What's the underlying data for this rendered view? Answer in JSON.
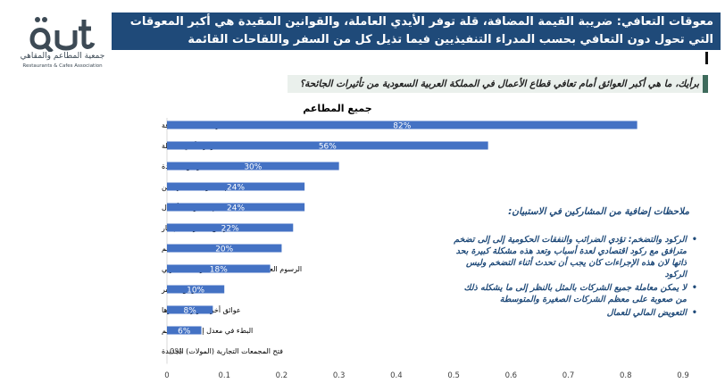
{
  "logo": {
    "arabic": "جمعية المطاعم والمقاهي",
    "english": "Restaurants & Cafes Association",
    "color": "#3d4a55"
  },
  "header": {
    "label": "معوقات التعافي:",
    "text": "ضريبة القيمة المضافة، قلة توفر الأيدي العاملة، والقوانين المقيدة هي أكبر المعوقات التي تحول دون التعافي بحسب المدراء التنفيذيين فيما تذيل كل من السفر واللقاحات القائمة",
    "background": "#1f4a79"
  },
  "question": "برأيك، ما هي أكبر العوائق أمام تعافي قطاع الأعمال في المملكة العربية السعودية من تأثيرات الجائحة؟",
  "notes": {
    "title": "ملاحظات إضافية من المشاركين في الاستبيان:",
    "items": [
      "الركود والتضخم: تؤدي الضرائب والنفقات الحكومية إلى إلى تضخم مترافق مع ركود اقتصادي لعدة أسباب وتعد هذه مشكلة كبيرة بحد ذاتها لان هذه الإجراءات كان يجب أن تحدث أثناء التضخم وليس الركود",
      "لا يمكن معاملة جميع الشركات بالمثل بالنظر إلى ما يشكله ذلك من صعوبة على معظم الشركات الصغيرة والمتوسطة",
      "التعويض المالي للعمال"
    ]
  },
  "chart_data": {
    "type": "bar",
    "orientation": "horizontal",
    "title": "جميع المطاعم",
    "bar_color": "#4472c4",
    "categories": [
      "ضريبة القيمة المضافة",
      "قلة توفر الأيدي العاملة",
      "القوانين المقيدة",
      "قلة دعم الحكومة للمستهلكين",
      "قلة دعم الحكومة للأعمال",
      "ارتفاع مستويات الإيجار",
      "التضخم",
      "الرسوم العالية لمنصات طلبات التوصيل المنزلي",
      "عوائق السفر",
      "عوائق أخرى، ويرجى ذكرها",
      "البطء في معدل إعطاء التطعيم",
      "فتح المجمعات التجارية (المولات) الجديدة"
    ],
    "values": [
      0.82,
      0.56,
      0.3,
      0.24,
      0.24,
      0.22,
      0.2,
      0.18,
      0.1,
      0.08,
      0.06,
      0.0
    ],
    "data_labels": [
      "82%",
      "56%",
      "30%",
      "24%",
      "24%",
      "22%",
      "20%",
      "18%",
      "10%",
      "8%",
      "6%",
      "0%"
    ],
    "xlim": [
      0,
      0.9
    ],
    "xticks": [
      0,
      0.1,
      0.2,
      0.3,
      0.4,
      0.5,
      0.6,
      0.7,
      0.8,
      0.9
    ],
    "xtick_labels": [
      "0",
      "0.1",
      "0.2",
      "0.3",
      "0.4",
      "0.5",
      "0.6",
      "0.7",
      "0.8",
      "0.9"
    ],
    "grid": false
  }
}
